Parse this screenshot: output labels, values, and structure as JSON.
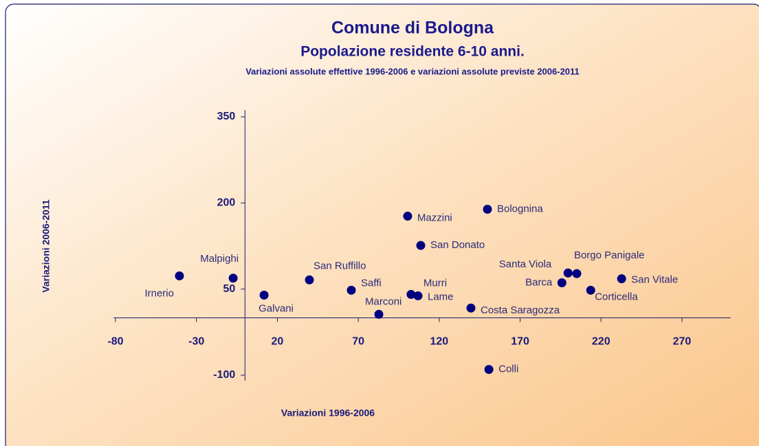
{
  "chart_data": {
    "type": "scatter",
    "title": "Comune di Bologna",
    "subtitle": "Popolazione residente 6-10 anni.",
    "subtitle2": "Variazioni assolute effettive 1996-2006 e variazioni assolute previste 2006-2011",
    "xlabel": "Variazioni 1996-2006",
    "ylabel": "Variazioni 2006-2011",
    "labels": [
      "Irnerio",
      "Malpighi",
      "Galvani",
      "San Ruffillo",
      "Saffi",
      "Marconi",
      "Murri",
      "Lame",
      "Mazzini",
      "San Donato",
      "Bolognina",
      "Costa Saragozza",
      "Colli",
      "Barca",
      "Santa Viola",
      "Borgo Panigale",
      "Corticella",
      "San Vitale"
    ],
    "x": [
      -40.5,
      -7.3,
      11.8,
      39.8,
      65.7,
      82.7,
      102.6,
      106.9,
      100.5,
      108.6,
      149.8,
      139.6,
      150.7,
      195.8,
      199.6,
      205,
      213.6,
      232.7
    ],
    "y": [
      73,
      69,
      39.5,
      66,
      48,
      6,
      40.7,
      38.3,
      177,
      126,
      189,
      17,
      -90,
      61,
      78,
      77,
      48,
      68
    ],
    "color": "#000080",
    "xlim": [
      -80,
      300
    ],
    "ylim": [
      -100,
      350
    ],
    "xticks": [
      -80,
      -30,
      20,
      70,
      120,
      170,
      220,
      270
    ],
    "yticks": [
      -100,
      50,
      200,
      350
    ]
  }
}
